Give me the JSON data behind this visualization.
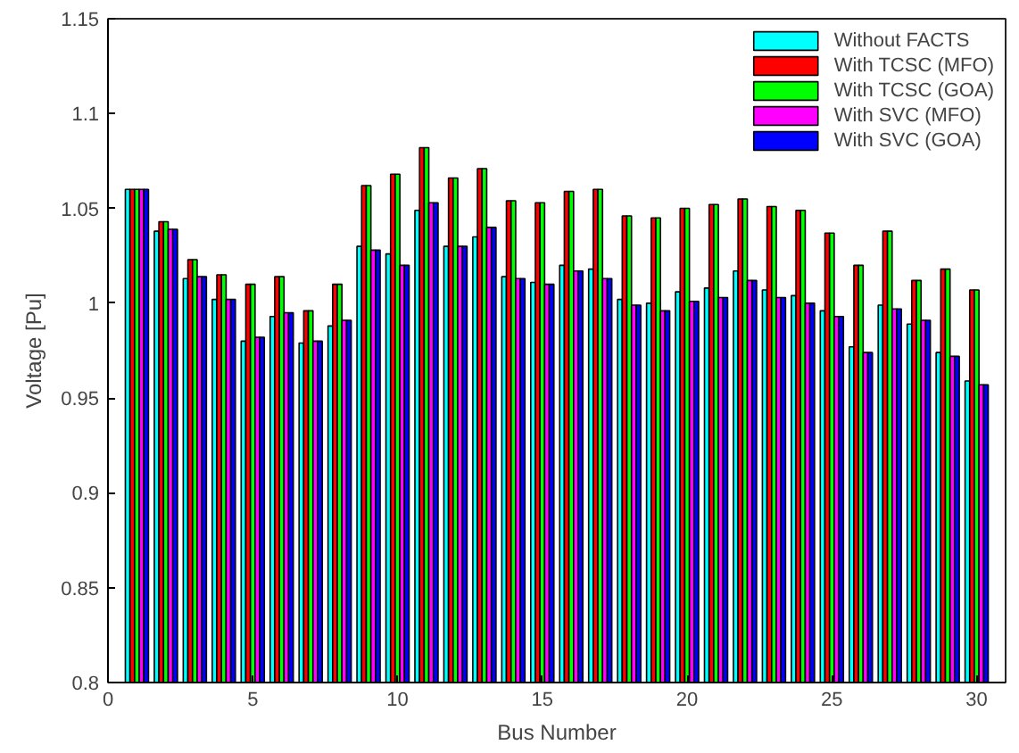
{
  "chart_data": {
    "type": "bar",
    "xlabel": "Bus Number",
    "ylabel": "Voltage [Pu]",
    "x": [
      1,
      2,
      3,
      4,
      5,
      6,
      7,
      8,
      9,
      10,
      11,
      12,
      13,
      14,
      15,
      16,
      17,
      18,
      19,
      20,
      21,
      22,
      23,
      24,
      25,
      26,
      27,
      28,
      29,
      30
    ],
    "xlim": [
      0,
      31
    ],
    "xticks": [
      0,
      5,
      10,
      15,
      20,
      25,
      30
    ],
    "ylim": [
      0.8,
      1.15
    ],
    "yticks": [
      0.8,
      0.85,
      0.9,
      0.95,
      1,
      1.05,
      1.1,
      1.15
    ],
    "grid": false,
    "legend": "top right",
    "series": [
      {
        "name": "Without FACTS",
        "color": "#00ffff",
        "values": [
          1.06,
          1.038,
          1.013,
          1.002,
          0.98,
          0.993,
          0.979,
          0.988,
          1.03,
          1.026,
          1.049,
          1.03,
          1.035,
          1.014,
          1.011,
          1.02,
          1.018,
          1.002,
          1.0,
          1.006,
          1.008,
          1.017,
          1.007,
          1.004,
          0.996,
          0.977,
          0.999,
          0.989,
          0.974,
          0.959
        ]
      },
      {
        "name": "With TCSC (MFO)",
        "color": "#ff0000",
        "values": [
          1.06,
          1.043,
          1.023,
          1.015,
          1.01,
          1.014,
          0.996,
          1.01,
          1.062,
          1.068,
          1.082,
          1.066,
          1.071,
          1.054,
          1.053,
          1.059,
          1.06,
          1.046,
          1.045,
          1.05,
          1.052,
          1.055,
          1.051,
          1.049,
          1.037,
          1.02,
          1.038,
          1.012,
          1.018,
          1.007
        ]
      },
      {
        "name": "With TCSC (GOA)",
        "color": "#00ff00",
        "values": [
          1.06,
          1.043,
          1.023,
          1.015,
          1.01,
          1.014,
          0.996,
          1.01,
          1.062,
          1.068,
          1.082,
          1.066,
          1.071,
          1.054,
          1.053,
          1.059,
          1.06,
          1.046,
          1.045,
          1.05,
          1.052,
          1.055,
          1.051,
          1.049,
          1.037,
          1.02,
          1.038,
          1.012,
          1.018,
          1.007
        ]
      },
      {
        "name": "With SVC (MFO)",
        "color": "#ff00ff",
        "values": [
          1.06,
          1.039,
          1.014,
          1.002,
          0.982,
          0.995,
          0.98,
          0.991,
          1.028,
          1.02,
          1.053,
          1.03,
          1.04,
          1.013,
          1.01,
          1.017,
          1.013,
          0.999,
          0.996,
          1.001,
          1.003,
          1.012,
          1.003,
          1.0,
          0.993,
          0.974,
          0.997,
          0.991,
          0.972,
          0.957
        ]
      },
      {
        "name": "With SVC (GOA)",
        "color": "#0000ff",
        "values": [
          1.06,
          1.039,
          1.014,
          1.002,
          0.982,
          0.995,
          0.98,
          0.991,
          1.028,
          1.02,
          1.053,
          1.03,
          1.04,
          1.013,
          1.01,
          1.017,
          1.013,
          0.999,
          0.996,
          1.001,
          1.003,
          1.012,
          1.003,
          1.0,
          0.993,
          0.974,
          0.997,
          0.991,
          0.972,
          0.957
        ]
      }
    ]
  }
}
